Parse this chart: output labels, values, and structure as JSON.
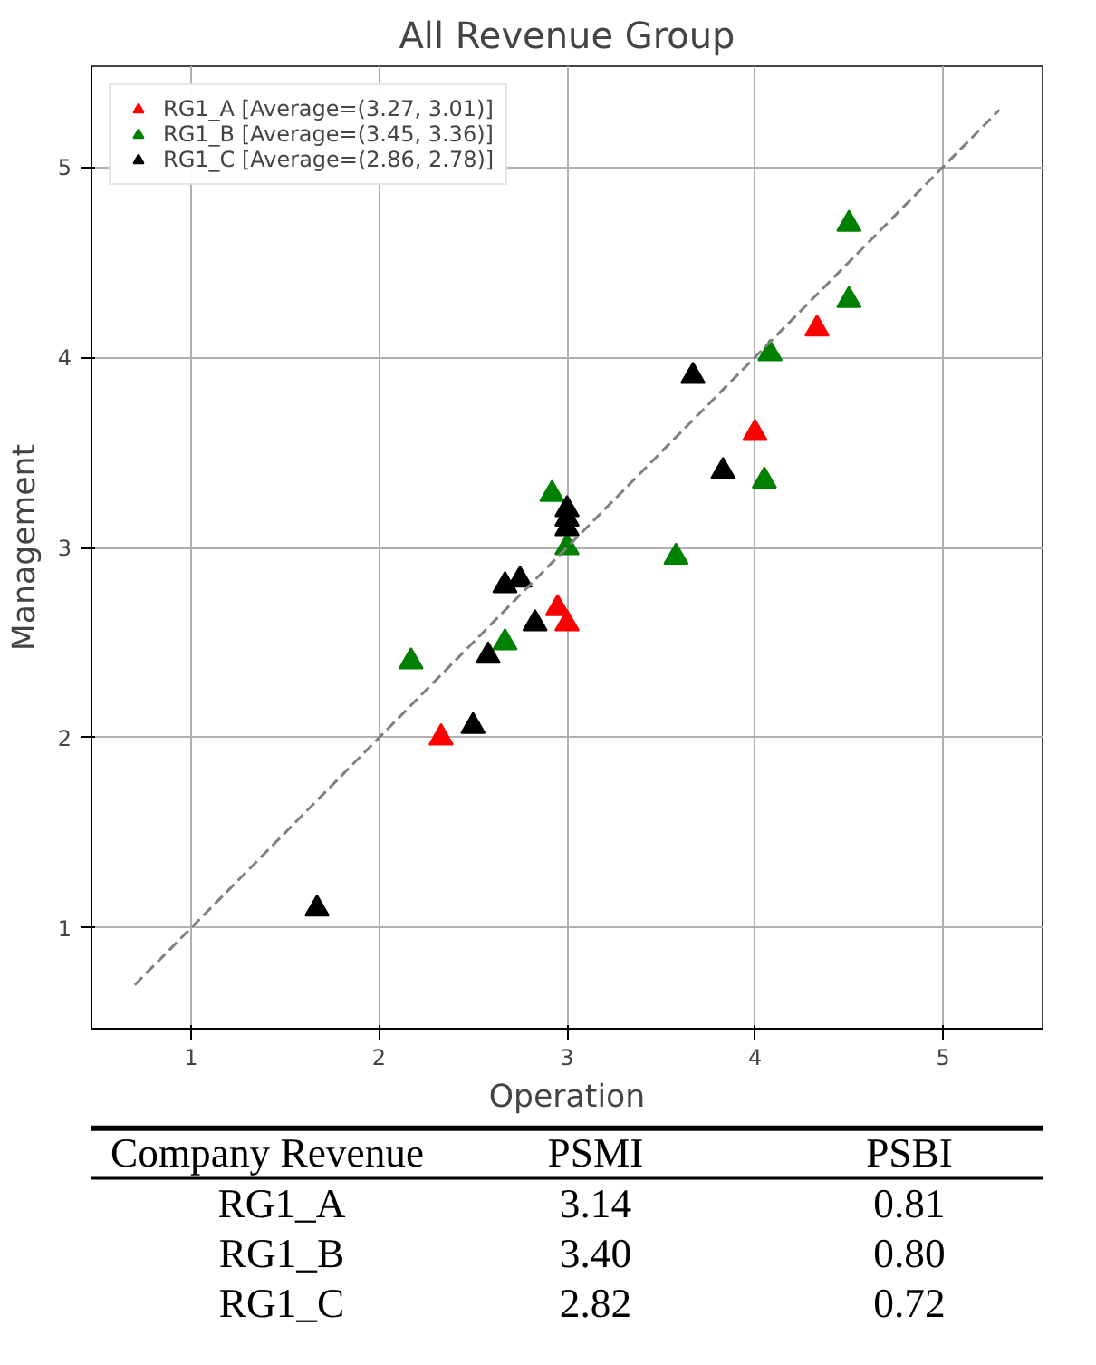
{
  "chart_data": [
    {
      "type": "scatter",
      "title": "All Revenue Group",
      "xlabel": "Operation",
      "ylabel": "Management",
      "xlim": [
        0.47,
        5.53
      ],
      "ylim": [
        0.47,
        5.53
      ],
      "xticks": [
        1,
        2,
        3,
        4,
        5
      ],
      "yticks": [
        1,
        2,
        3,
        4,
        5
      ],
      "grid": true,
      "legend": "top left",
      "marker": "triangle",
      "series": [
        {
          "name": "RG1_A [Average=(3.27, 3.01)]",
          "color": "#ff0000",
          "x": [
            2.33,
            2.95,
            3.0,
            4.0,
            4.33
          ],
          "values": [
            2.0,
            2.68,
            2.6,
            3.6,
            4.15
          ]
        },
        {
          "name": "RG1_B [Average=(3.45, 3.36)]",
          "color": "#008000",
          "x": [
            2.17,
            2.67,
            2.92,
            3.0,
            3.58,
            4.05,
            4.08,
            4.5,
            4.5
          ],
          "values": [
            2.4,
            2.5,
            3.28,
            3.0,
            2.95,
            3.35,
            4.02,
            4.3,
            4.7
          ]
        },
        {
          "name": "RG1_C [Average=(2.86, 2.78)]",
          "color": "#000000",
          "x": [
            1.67,
            2.5,
            2.58,
            2.67,
            2.75,
            2.83,
            3.0,
            3.0,
            3.0,
            3.67,
            3.83
          ],
          "values": [
            1.1,
            2.06,
            2.43,
            2.8,
            2.83,
            2.6,
            3.1,
            3.15,
            3.2,
            3.9,
            3.4
          ]
        },
        {
          "type": "line",
          "color": "#808080",
          "line_style": "dashed",
          "marker": "none",
          "x": [
            0.7,
            5.3
          ],
          "values": [
            0.7,
            5.3
          ]
        }
      ]
    },
    {
      "type": "other",
      "annotations": [
        "Company Revenue",
        "PSMI",
        "PSBI",
        "RG1_A",
        "3.14",
        "0.81",
        "RG1_B",
        "3.40",
        "0.80",
        "RG1_C",
        "2.82",
        "0.72"
      ]
    }
  ]
}
